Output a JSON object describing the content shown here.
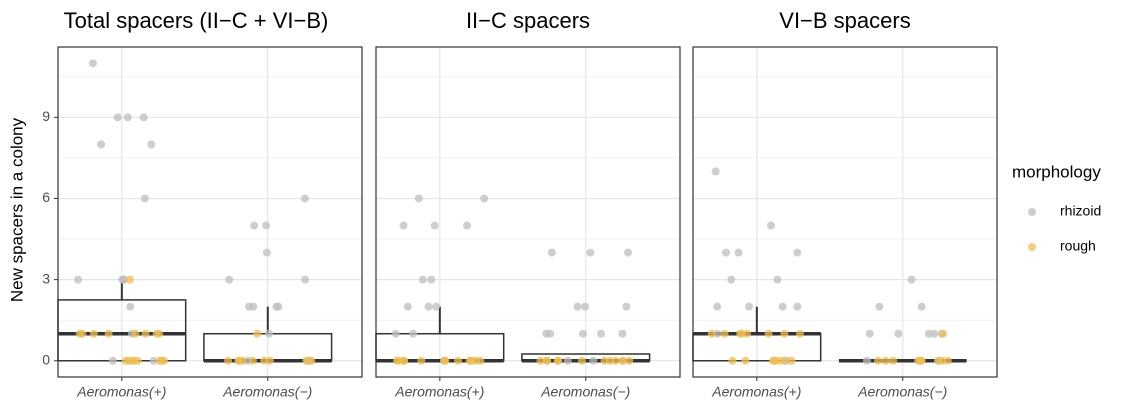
{
  "chart_data": [
    {
      "type": "box",
      "title": "Total spacers (II−C + VI−B)",
      "ylabel": "New spacers in a colony",
      "legend_title": "morphology",
      "legend_position": "right",
      "categories": [
        "Aeromonas(+)",
        "Aeromonas(−)"
      ],
      "boxes": [
        {
          "min": 0,
          "q1": 0,
          "median": 1,
          "q3": 2.25,
          "max": 3
        },
        {
          "min": 0,
          "q1": 0,
          "median": 0,
          "q3": 1,
          "max": 2
        }
      ],
      "series": [
        {
          "name": "rhizoid",
          "color": "#bebebe",
          "values": [
            [
              11,
              9,
              9,
              9,
              8,
              8,
              6,
              3,
              3,
              3,
              3,
              2,
              1,
              0,
              0
            ],
            [
              6,
              5,
              5,
              4,
              3,
              3,
              2,
              2,
              2,
              2,
              1,
              0,
              0,
              0
            ]
          ]
        },
        {
          "name": "rough",
          "color": "#efbf4f",
          "values": [
            [
              3,
              1,
              1,
              1,
              1,
              1,
              1,
              1,
              1,
              0,
              0,
              0,
              0,
              0,
              0,
              0,
              0
            ],
            [
              1,
              0,
              0,
              0,
              0,
              0,
              0,
              0,
              0,
              0
            ]
          ]
        }
      ],
      "ylim": [
        -0.6,
        11.6
      ],
      "yticks": [
        0,
        3,
        6,
        9
      ],
      "grid": true
    },
    {
      "type": "box",
      "title": "II−C spacers",
      "categories": [
        "Aeromonas(+)",
        "Aeromonas(−)"
      ],
      "boxes": [
        {
          "min": 0,
          "q1": 0,
          "median": 0,
          "q3": 1,
          "max": 2
        },
        {
          "min": 0,
          "q1": 0,
          "median": 0,
          "q3": 0.25,
          "max": 0.25
        }
      ],
      "series": [
        {
          "color": "#bebebe",
          "values": [
            [
              6,
              6,
              5,
              5,
              5,
              3,
              3,
              2,
              2,
              2,
              1,
              1,
              0,
              0
            ],
            [
              4,
              4,
              4,
              2,
              2,
              2,
              1,
              1,
              1,
              1,
              1,
              0,
              0
            ]
          ]
        },
        {
          "color": "#efbf4f",
          "values": [
            [
              0,
              0,
              0,
              0,
              0,
              0,
              0,
              0,
              0,
              0,
              0,
              0
            ],
            [
              0,
              0,
              0,
              0,
              0,
              0,
              0,
              0,
              0,
              0,
              0,
              0
            ]
          ]
        }
      ],
      "ylim": [
        -0.6,
        11.6
      ],
      "yticks": [
        0,
        3,
        6,
        9
      ],
      "grid": true
    },
    {
      "type": "box",
      "title": "VI−B spacers",
      "categories": [
        "Aeromonas(+)",
        "Aeromonas(−)"
      ],
      "boxes": [
        {
          "min": 0,
          "q1": 0,
          "median": 1,
          "q3": 1,
          "max": 2
        },
        {
          "min": 0,
          "q1": 0,
          "median": 0,
          "q3": 0,
          "max": 0
        }
      ],
      "series": [
        {
          "color": "#bebebe",
          "values": [
            [
              7,
              5,
              4,
              4,
              4,
              3,
              3,
              2,
              2,
              2,
              2,
              1,
              0
            ],
            [
              3,
              2,
              2,
              1,
              1,
              1,
              1,
              1,
              0,
              0
            ]
          ]
        },
        {
          "color": "#efbf4f",
          "values": [
            [
              1,
              1,
              1,
              1,
              1,
              1,
              1,
              1,
              0,
              0,
              0,
              0,
              0,
              0,
              0,
              0
            ],
            [
              1,
              0,
              0,
              0,
              0,
              0,
              0,
              0,
              0,
              0,
              0
            ]
          ]
        }
      ],
      "ylim": [
        -0.6,
        11.6
      ],
      "yticks": [
        0,
        3,
        6,
        9
      ],
      "grid": true
    }
  ]
}
